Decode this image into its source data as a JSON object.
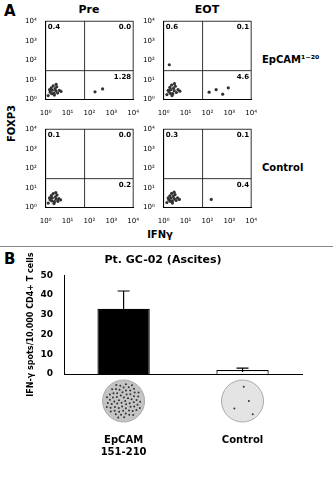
{
  "panel_labels": [
    "A",
    "B"
  ],
  "panel_a": {
    "columns": [
      "Pre",
      "EOT"
    ],
    "rows": [
      "EpCAM¹⁻²⁰",
      "Control"
    ],
    "xlabel": "IFNγ",
    "ylabel": "FOXP3"
  },
  "chart_data": [
    {
      "type": "scatter",
      "log": true,
      "color": "#333333",
      "grid": false,
      "xlim": [
        1,
        10000
      ],
      "ylim": [
        1,
        10000
      ],
      "xticks": [
        {
          "value": 1,
          "label": "10⁰"
        },
        {
          "value": 10,
          "label": "10¹"
        },
        {
          "value": 100,
          "label": "10²"
        },
        {
          "value": 1000,
          "label": "10³"
        },
        {
          "value": 10000,
          "label": "10⁴"
        }
      ],
      "yticks": [
        {
          "value": 1,
          "label": "10⁰"
        },
        {
          "value": 10,
          "label": "10¹"
        },
        {
          "value": 100,
          "label": "10²"
        },
        {
          "value": 1000,
          "label": "10³"
        },
        {
          "value": 10000,
          "label": "10⁴"
        }
      ],
      "gates": {
        "x": 60,
        "y": 30
      },
      "quadrant_values": [
        0.4,
        0,
        1.28
      ],
      "quadrant_value_labels": [
        "0.4",
        "0.0",
        "1.28"
      ],
      "x": [
        1.3,
        1.6,
        2,
        2.4,
        2.9,
        3.5,
        1.8,
        2.2,
        2.7,
        1.5,
        3.2,
        4.2,
        2.5,
        1.9,
        5,
        3,
        180,
        400
      ],
      "values": [
        1.6,
        2.4,
        3,
        2.1,
        2.8,
        2.2,
        4,
        5,
        3.6,
        3.2,
        4.5,
        3,
        1.7,
        2,
        2.6,
        6,
        2.5,
        3.5
      ]
    },
    {
      "type": "scatter",
      "log": true,
      "color": "#333333",
      "grid": false,
      "xlim": [
        1,
        10000
      ],
      "ylim": [
        1,
        10000
      ],
      "xticks": [
        {
          "value": 1,
          "label": "10⁰"
        },
        {
          "value": 10,
          "label": "10¹"
        },
        {
          "value": 100,
          "label": "10²"
        },
        {
          "value": 1000,
          "label": "10³"
        },
        {
          "value": 10000,
          "label": "10⁴"
        }
      ],
      "yticks": [
        {
          "value": 1,
          "label": "10⁰"
        },
        {
          "value": 10,
          "label": "10¹"
        },
        {
          "value": 100,
          "label": "10²"
        },
        {
          "value": 1000,
          "label": "10³"
        },
        {
          "value": 10000,
          "label": "10⁴"
        }
      ],
      "gates": {
        "x": 60,
        "y": 30
      },
      "quadrant_values": [
        0.6,
        0.1,
        4.6
      ],
      "quadrant_value_labels": [
        "0.6",
        "0.1",
        "4.6"
      ],
      "x": [
        1.4,
        1.7,
        2.1,
        2.6,
        3,
        3.8,
        1.9,
        2.3,
        2.8,
        1.6,
        3.4,
        4.5,
        2.4,
        2,
        5.5,
        3.1,
        120,
        250,
        500,
        900,
        1.8
      ],
      "values": [
        1.8,
        2.6,
        3.2,
        2,
        2.9,
        2.3,
        4.2,
        5.5,
        3.8,
        3,
        4.8,
        3.2,
        1.6,
        2.1,
        2.7,
        6.5,
        2.4,
        3.2,
        1.9,
        4,
        60
      ]
    },
    {
      "type": "scatter",
      "log": true,
      "color": "#333333",
      "grid": false,
      "xlim": [
        1,
        10000
      ],
      "ylim": [
        1,
        10000
      ],
      "xticks": [
        {
          "value": 1,
          "label": "10⁰"
        },
        {
          "value": 10,
          "label": "10¹"
        },
        {
          "value": 100,
          "label": "10²"
        },
        {
          "value": 1000,
          "label": "10³"
        },
        {
          "value": 10000,
          "label": "10⁴"
        }
      ],
      "yticks": [
        {
          "value": 1,
          "label": "10⁰"
        },
        {
          "value": 10,
          "label": "10¹"
        },
        {
          "value": 100,
          "label": "10²"
        },
        {
          "value": 1000,
          "label": "10³"
        },
        {
          "value": 10000,
          "label": "10⁴"
        }
      ],
      "gates": {
        "x": 60,
        "y": 30
      },
      "quadrant_values": [
        0.1,
        0,
        0.2
      ],
      "quadrant_value_labels": [
        "0.1",
        "0.0",
        "0.2"
      ],
      "x": [
        1.3,
        1.6,
        2,
        2.5,
        3,
        3.6,
        1.8,
        2.2,
        2.8,
        1.5,
        3.3,
        4,
        2.4,
        1.9,
        4.8,
        2.9
      ],
      "values": [
        1.7,
        2.5,
        3.1,
        2,
        2.7,
        2.1,
        4.1,
        5.2,
        3.5,
        3.1,
        4.4,
        2.9,
        1.6,
        2.2,
        2.5,
        5.8
      ]
    },
    {
      "type": "scatter",
      "log": true,
      "color": "#333333",
      "grid": false,
      "xlim": [
        1,
        10000
      ],
      "ylim": [
        1,
        10000
      ],
      "xticks": [
        {
          "value": 1,
          "label": "10⁰"
        },
        {
          "value": 10,
          "label": "10¹"
        },
        {
          "value": 100,
          "label": "10²"
        },
        {
          "value": 1000,
          "label": "10³"
        },
        {
          "value": 10000,
          "label": "10⁴"
        }
      ],
      "yticks": [
        {
          "value": 1,
          "label": "10⁰"
        },
        {
          "value": 10,
          "label": "10¹"
        },
        {
          "value": 100,
          "label": "10²"
        },
        {
          "value": 1000,
          "label": "10³"
        },
        {
          "value": 10000,
          "label": "10⁴"
        }
      ],
      "gates": {
        "x": 60,
        "y": 30
      },
      "quadrant_values": [
        0.3,
        0.1,
        0.4
      ],
      "quadrant_value_labels": [
        "0.3",
        "0.1",
        "0.4"
      ],
      "x": [
        1.4,
        1.7,
        2.1,
        2.5,
        3.1,
        3.7,
        1.9,
        2.3,
        2.7,
        1.6,
        3.3,
        4.3,
        2.5,
        2,
        5.2,
        3,
        150
      ],
      "values": [
        1.8,
        2.5,
        3,
        2.2,
        2.8,
        2.3,
        4,
        5.3,
        3.7,
        3.1,
        4.6,
        3.1,
        1.7,
        2.1,
        2.6,
        6.1,
        2.6
      ]
    },
    {
      "type": "bar",
      "title": "Pt. GC-02 (Ascites)",
      "ylabel": "IFN-γ spots/10.000 CD4+ T cells",
      "categories": [
        "EpCAM 151-210",
        "Control"
      ],
      "values": [
        33,
        2
      ],
      "errors": [
        9,
        1
      ],
      "colors": [
        "#000000",
        "#ffffff"
      ],
      "grid": false,
      "ylim": [
        0,
        50
      ],
      "yticks": [
        0,
        10,
        20,
        30,
        40,
        50
      ]
    }
  ]
}
